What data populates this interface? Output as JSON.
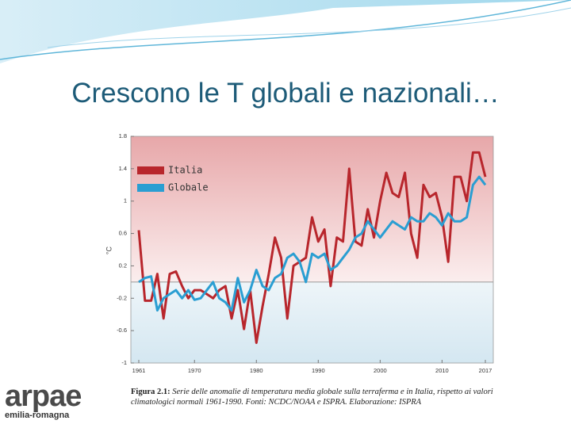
{
  "slide_title": "Crescono le T globali e nazionali…",
  "chart_data": {
    "type": "line",
    "ylabel": "°C",
    "x": [
      1961,
      1962,
      1963,
      1964,
      1965,
      1966,
      1967,
      1968,
      1969,
      1970,
      1971,
      1972,
      1973,
      1974,
      1975,
      1976,
      1977,
      1978,
      1979,
      1980,
      1981,
      1982,
      1983,
      1984,
      1985,
      1986,
      1987,
      1988,
      1989,
      1990,
      1991,
      1992,
      1993,
      1994,
      1995,
      1996,
      1997,
      1998,
      1999,
      2000,
      2001,
      2002,
      2003,
      2004,
      2005,
      2006,
      2007,
      2008,
      2009,
      2010,
      2011,
      2012,
      2013,
      2014,
      2015,
      2016,
      2017
    ],
    "series": [
      {
        "name": "Italia",
        "color": "#b8262c",
        "values": [
          0.64,
          -0.23,
          -0.23,
          0.1,
          -0.45,
          0.1,
          0.13,
          -0.05,
          -0.2,
          -0.1,
          -0.1,
          -0.15,
          -0.2,
          -0.1,
          -0.05,
          -0.45,
          -0.1,
          -0.58,
          -0.1,
          -0.75,
          -0.3,
          0.1,
          0.55,
          0.3,
          -0.45,
          0.2,
          0.25,
          0.3,
          0.8,
          0.5,
          0.65,
          -0.05,
          0.55,
          0.5,
          1.4,
          0.5,
          0.45,
          0.9,
          0.55,
          1.0,
          1.35,
          1.1,
          1.05,
          1.35,
          0.6,
          0.3,
          1.2,
          1.05,
          1.1,
          0.8,
          0.25,
          1.3,
          1.3,
          1.0,
          1.6,
          1.6,
          1.3
        ]
      },
      {
        "name": "Globale",
        "color": "#2a9ed2",
        "values": [
          0.0,
          0.05,
          0.07,
          -0.35,
          -0.2,
          -0.15,
          -0.1,
          -0.2,
          -0.1,
          -0.22,
          -0.2,
          -0.1,
          0.0,
          -0.2,
          -0.25,
          -0.35,
          0.05,
          -0.25,
          -0.1,
          0.15,
          -0.05,
          -0.1,
          0.05,
          0.1,
          0.3,
          0.35,
          0.25,
          0.0,
          0.35,
          0.3,
          0.35,
          0.15,
          0.2,
          0.3,
          0.4,
          0.55,
          0.6,
          0.75,
          0.65,
          0.55,
          0.65,
          0.75,
          0.7,
          0.65,
          0.8,
          0.75,
          0.75,
          0.85,
          0.8,
          0.7,
          0.85,
          0.75,
          0.75,
          0.8,
          1.2,
          1.3,
          1.2
        ]
      }
    ],
    "xlim": [
      1961,
      2017
    ],
    "xticks": [
      1961,
      1970,
      1980,
      1990,
      2000,
      2010,
      2017
    ],
    "ylim": [
      -1,
      1.8
    ],
    "yticks": [
      -1,
      -0.6,
      -0.2,
      0.2,
      0.6,
      1,
      1.4,
      1.8
    ],
    "legend": "upper left",
    "grid": false
  },
  "caption": {
    "label": "Figura 2.1:",
    "text": "Serie delle anomalie di temperatura media globale sulla terraferma e in Italia, rispetto ai valori climatologici normali 1961-1990. Fonti: NCDC/NOAA e ISPRA. Elaborazione: ISPRA"
  },
  "logo": {
    "name": "arpae",
    "region": "emilia-romagna"
  }
}
